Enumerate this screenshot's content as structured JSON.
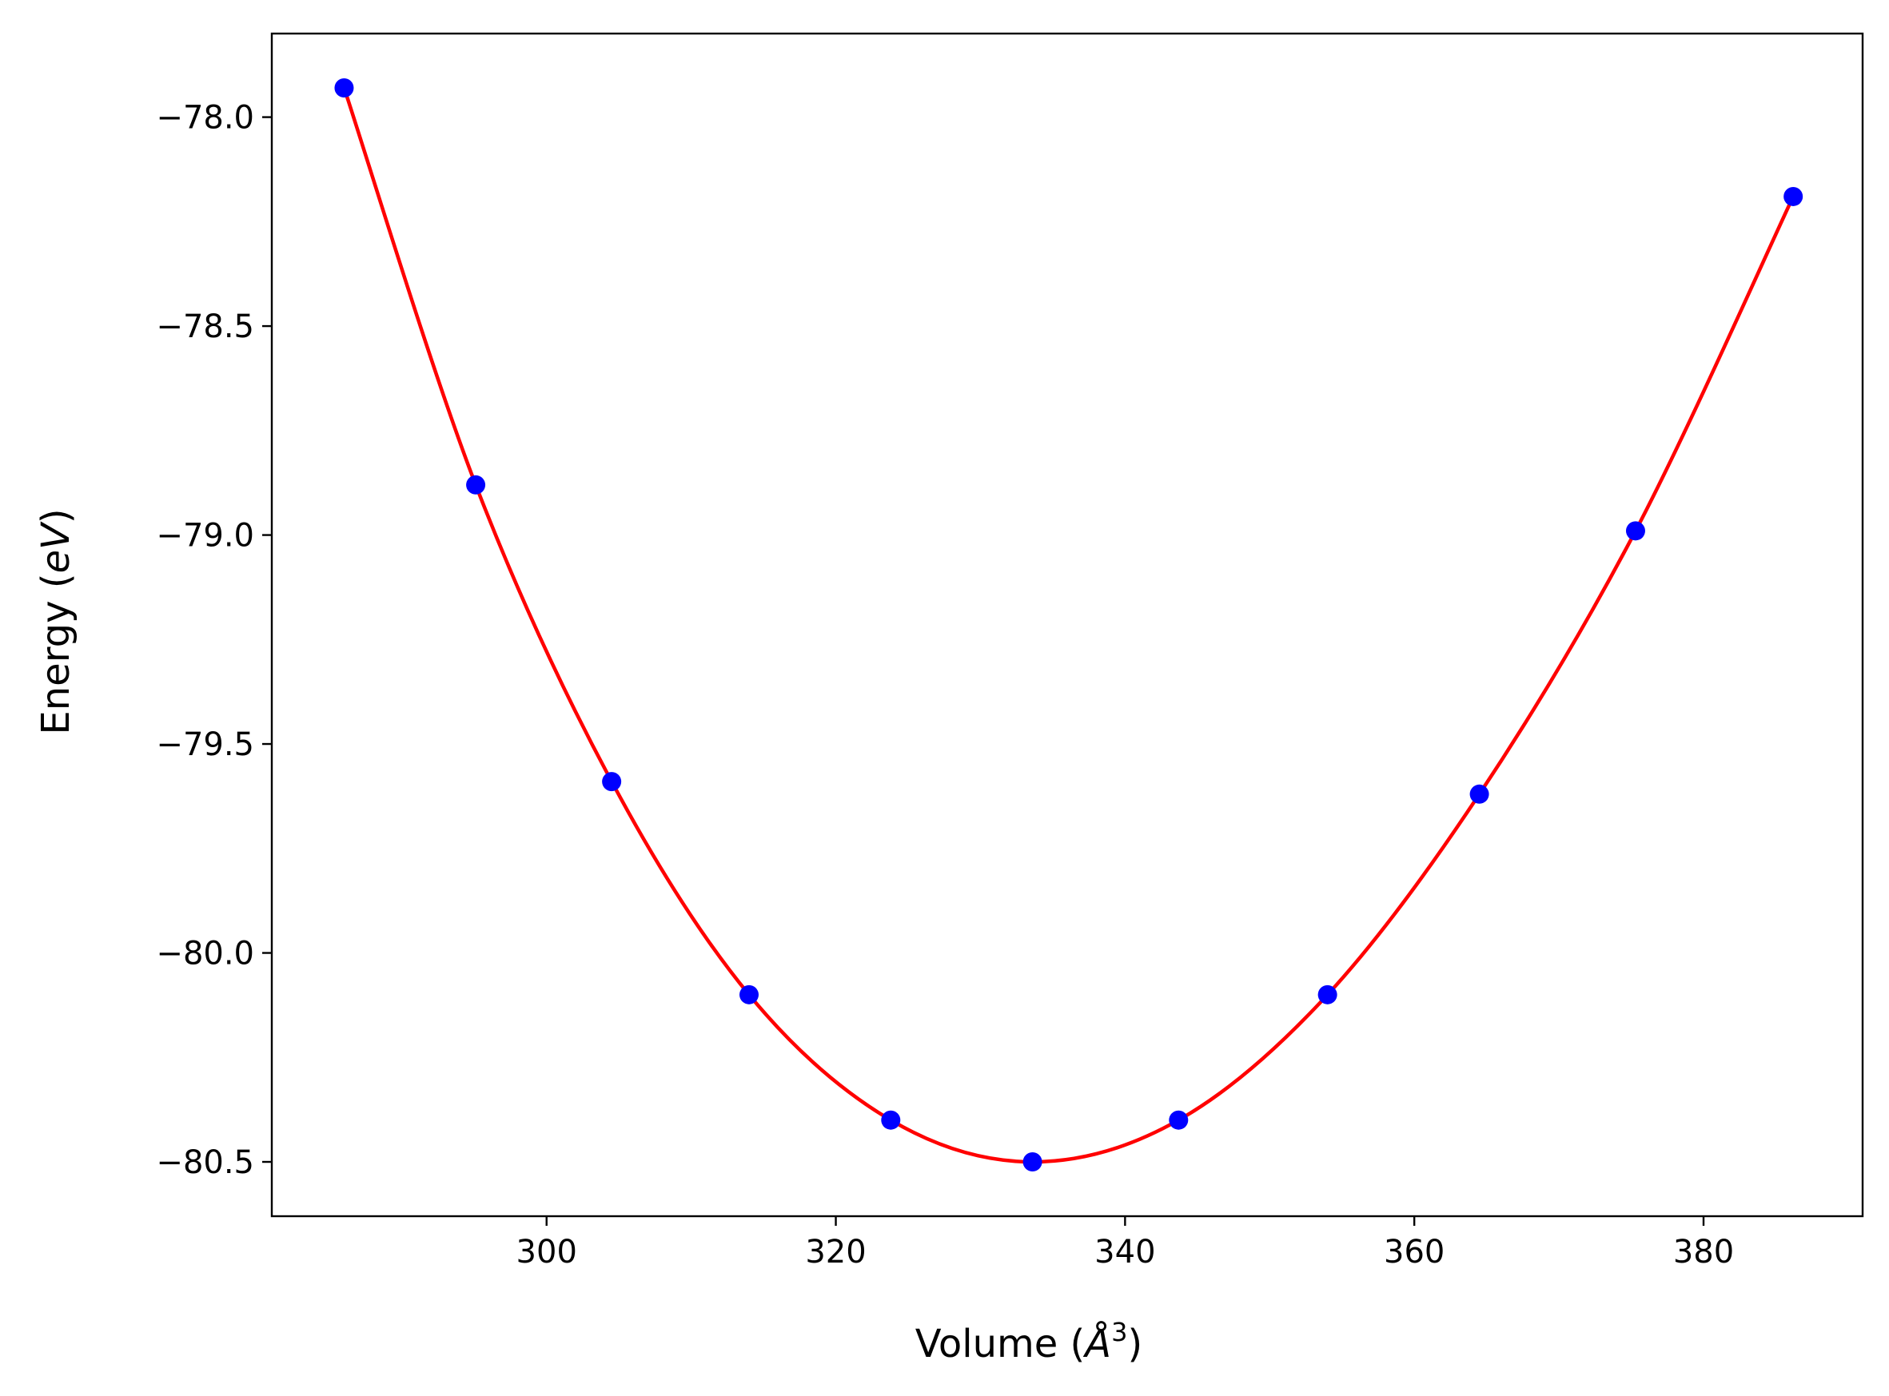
{
  "chart_data": {
    "type": "scatter",
    "xlabel": "Volume (Å³)",
    "xlabel_parts": {
      "main": "Volume (",
      "symbol": "Å",
      "power": "3",
      "close": ")"
    },
    "ylabel": "Energy (eV)",
    "ylabel_parts": {
      "main": "Energy (",
      "italic": "eV",
      "close": ")"
    },
    "xlim": [
      281,
      391
    ],
    "ylim": [
      -80.63,
      -77.8
    ],
    "x_ticks": [
      300,
      320,
      340,
      360,
      380
    ],
    "y_ticks": [
      -78.0,
      -78.5,
      -79.0,
      -79.5,
      -80.0,
      -80.5
    ],
    "x_tick_labels": [
      "300",
      "320",
      "340",
      "360",
      "380"
    ],
    "y_tick_labels": [
      "−78.0",
      "−78.5",
      "−79.0",
      "−79.5",
      "−80.0",
      "−80.5"
    ],
    "grid": false,
    "series": [
      {
        "kind": "points",
        "color": "#0000ff",
        "x": [
          286.0,
          295.1,
          304.5,
          314.0,
          323.8,
          333.6,
          343.7,
          354.0,
          364.5,
          375.3,
          386.2
        ],
        "y": [
          -77.93,
          -78.88,
          -79.59,
          -80.1,
          -80.4,
          -80.5,
          -80.4,
          -80.1,
          -79.62,
          -78.99,
          -78.19
        ]
      },
      {
        "kind": "fit-line",
        "color": "#ff0000",
        "method": "spline-through-points"
      }
    ]
  }
}
